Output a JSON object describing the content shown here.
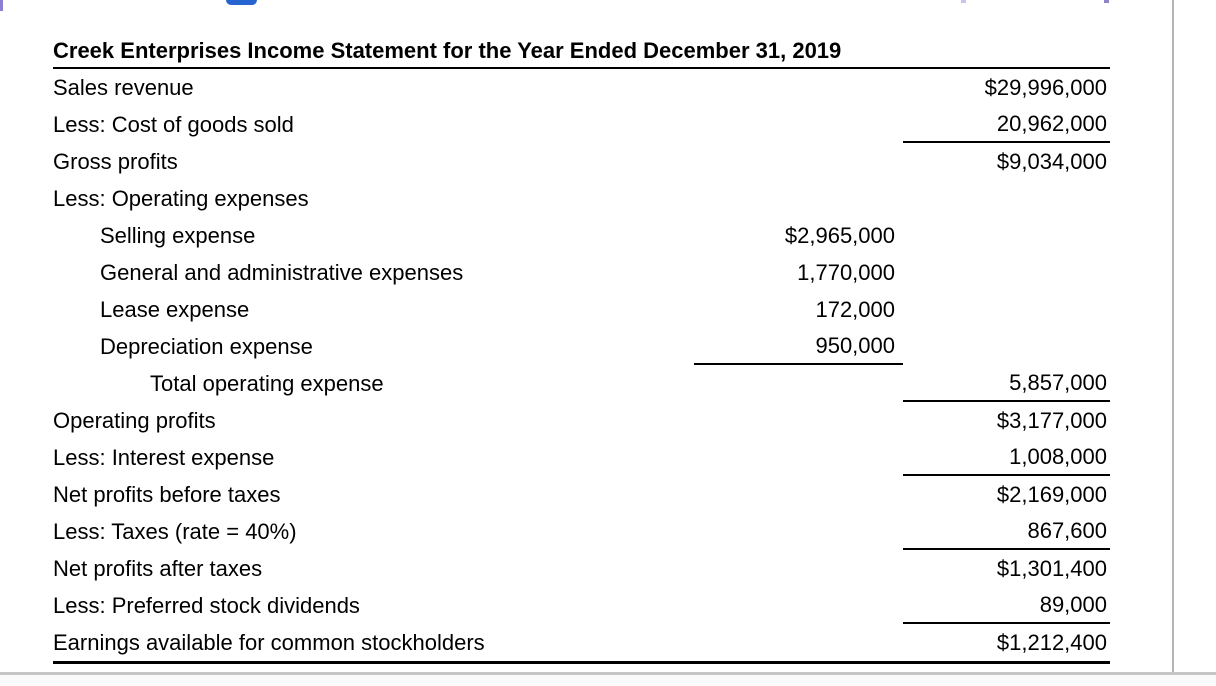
{
  "colors": {
    "text": "#000000",
    "table_rule": "#000000",
    "border_gray": "#b4b4b4",
    "bottom_border_gray": "#c6c6c6",
    "blue_fragment": "#2563d0",
    "purple_fragment": "#8a7fd0"
  },
  "statement": {
    "title": "Creek Enterprises Income Statement for the Year Ended December 31, 2019",
    "rows": [
      {
        "label": "Sales revenue",
        "mid": "",
        "right": "$29,996,000"
      },
      {
        "label": "Less: Cost of goods sold",
        "mid": "",
        "right": "20,962,000"
      },
      {
        "label": "Gross profits",
        "mid": "",
        "right": "$9,034,000"
      },
      {
        "label": "Less: Operating expenses",
        "mid": "",
        "right": ""
      },
      {
        "label": "Selling expense",
        "mid": "$2,965,000",
        "right": ""
      },
      {
        "label": "General and administrative expenses",
        "mid": "1,770,000",
        "right": ""
      },
      {
        "label": "Lease expense",
        "mid": "172,000",
        "right": ""
      },
      {
        "label": "Depreciation expense",
        "mid": "950,000",
        "right": ""
      },
      {
        "label": "Total operating expense",
        "mid": "",
        "right": "5,857,000"
      },
      {
        "label": "Operating profits",
        "mid": "",
        "right": "$3,177,000"
      },
      {
        "label": "Less: Interest expense",
        "mid": "",
        "right": "1,008,000"
      },
      {
        "label": "Net profits before taxes",
        "mid": "",
        "right": "$2,169,000"
      },
      {
        "label": "Less: Taxes (rate = 40%)",
        "mid": "",
        "right": "867,600"
      },
      {
        "label": "Net profits after taxes",
        "mid": "",
        "right": "$1,301,400"
      },
      {
        "label": "Less: Preferred stock dividends",
        "mid": "",
        "right": "89,000"
      },
      {
        "label": "Earnings available for common stockholders",
        "mid": "",
        "right": "$1,212,400"
      }
    ]
  }
}
